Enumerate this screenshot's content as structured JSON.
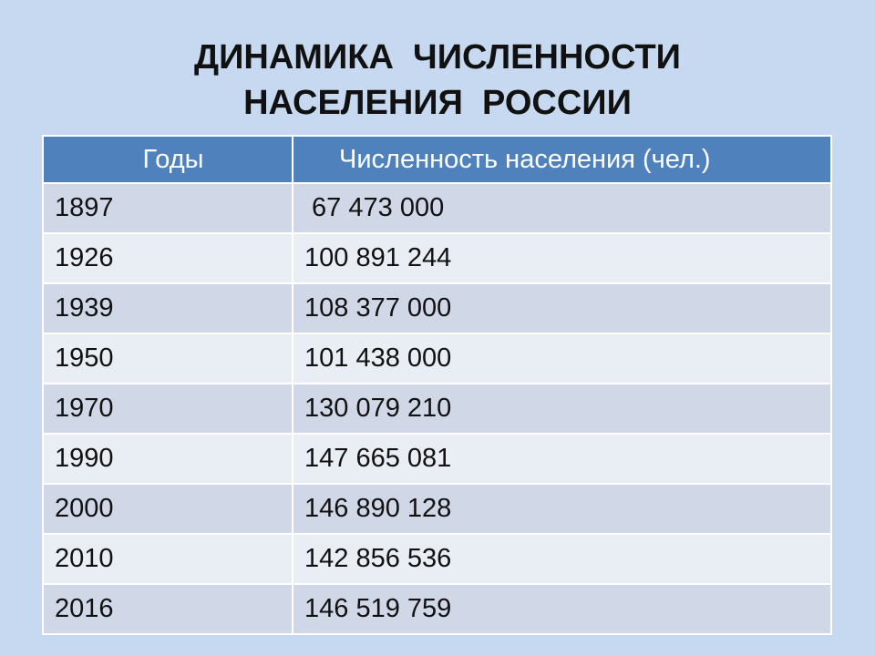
{
  "title": {
    "line1": "ДИНАМИКА  ЧИСЛЕННОСТИ",
    "line2": "НАСЕЛЕНИЯ  РОССИИ"
  },
  "table": {
    "headers": [
      "Годы",
      "Численность населения (чел.)"
    ],
    "rows": [
      [
        "1897",
        " 67 473 000"
      ],
      [
        "1926",
        "100 891 244"
      ],
      [
        "1939",
        "108 377 000"
      ],
      [
        "1950",
        "101 438 000"
      ],
      [
        "1970",
        "130 079 210"
      ],
      [
        "1990",
        "147 665 081"
      ],
      [
        "2000",
        "146 890 128"
      ],
      [
        "2010",
        "142 856 536"
      ],
      [
        "2016",
        "146 519 759"
      ]
    ]
  },
  "colors": {
    "background": "#c6d9f0",
    "header": "#4f81bd",
    "row_dark": "#d0d8e8",
    "row_light": "#e9edf4"
  }
}
